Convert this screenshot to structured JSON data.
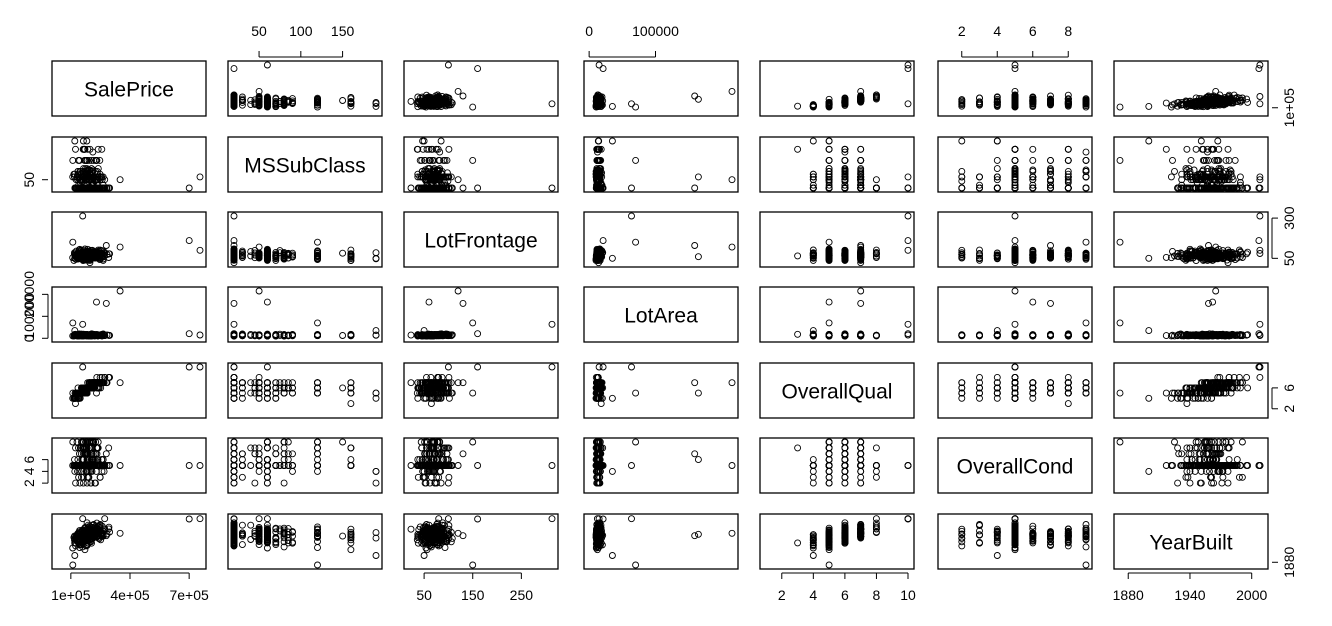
{
  "chart_data": {
    "type": "scatter",
    "variables": [
      "SalePrice",
      "MSSubClass",
      "LotFrontage",
      "LotArea",
      "OverallQual",
      "OverallCond",
      "YearBuilt"
    ],
    "ranges": [
      [
        34900,
        755000
      ],
      [
        20,
        190
      ],
      [
        21,
        313
      ],
      [
        1300,
        215245
      ],
      [
        1,
        10
      ],
      [
        1,
        9
      ],
      [
        1872,
        2010
      ]
    ],
    "axis_ticks": {
      "SalePrice": {
        "side": "bottom",
        "values": [
          100000,
          400000,
          700000
        ],
        "labels": [
          "1e+05",
          "4e+05",
          "7e+05"
        ]
      },
      "MSSubClass": {
        "side": "top",
        "values": [
          50,
          100,
          150
        ],
        "labels": [
          "50",
          "100",
          "150"
        ]
      },
      "LotFrontage": {
        "side": "bottom",
        "values": [
          50,
          150,
          250
        ],
        "labels": [
          "50",
          "150",
          "250"
        ]
      },
      "LotArea": {
        "side": "top",
        "values": [
          0,
          100000
        ],
        "labels": [
          "0",
          "100000"
        ]
      },
      "OverallQual": {
        "side": "bottom",
        "values": [
          2,
          4,
          6,
          8,
          10
        ],
        "labels": [
          "2",
          "4",
          "6",
          "8",
          "10"
        ]
      },
      "OverallCond": {
        "side": "top",
        "values": [
          2,
          4,
          6,
          8
        ],
        "labels": [
          "2",
          "4",
          "6",
          "8"
        ]
      },
      "YearBuilt": {
        "side": "bottom",
        "values": [
          1880,
          1940,
          2000
        ],
        "labels": [
          "1880",
          "1940",
          "2000"
        ]
      }
    },
    "row_ticks": {
      "SalePrice": {
        "side": "right",
        "values": [
          100000
        ],
        "labels": [
          "1e+05"
        ]
      },
      "MSSubClass": {
        "side": "left",
        "values": [
          50
        ],
        "labels": [
          "50"
        ]
      },
      "LotFrontage": {
        "side": "right",
        "values": [
          50,
          300
        ],
        "labels": [
          "50",
          "300"
        ]
      },
      "LotArea": {
        "side": "left",
        "values": [
          0,
          100000,
          200000
        ],
        "labels": [
          "0",
          "100000",
          "200000"
        ]
      },
      "OverallQual": {
        "side": "right",
        "values": [
          2,
          6
        ],
        "labels": [
          "2",
          "6"
        ]
      },
      "OverallCond": {
        "side": "left",
        "values": [
          2,
          4,
          6
        ],
        "labels": [
          "2",
          "4",
          "6"
        ]
      },
      "YearBuilt": {
        "side": "right",
        "values": [
          1880
        ],
        "labels": [
          "1880"
        ]
      }
    },
    "marker": "open-circle",
    "color": "#000000",
    "observations": 1460
  }
}
